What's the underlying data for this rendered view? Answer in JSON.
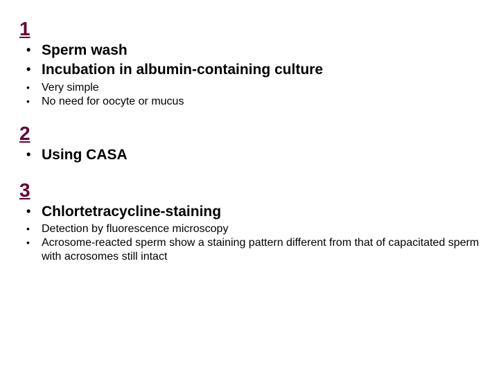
{
  "colors": {
    "heading": "#660033",
    "body": "#000000",
    "background": "#ffffff"
  },
  "typography": {
    "heading_fontsize": 28,
    "bold_bullet_fontsize": 21,
    "small_bullet_fontsize": 16,
    "font_family": "Arial"
  },
  "sections": [
    {
      "number": "1",
      "items": [
        {
          "level": "bold",
          "text": "Sperm wash"
        },
        {
          "level": "bold",
          "text": "Incubation in albumin-containing culture"
        },
        {
          "level": "small",
          "text": "Very simple"
        },
        {
          "level": "small",
          "text": "No need for oocyte or mucus"
        }
      ]
    },
    {
      "number": "2",
      "items": [
        {
          "level": "bold",
          "text": "Using CASA"
        }
      ]
    },
    {
      "number": "3",
      "items": [
        {
          "level": "bold",
          "text": "Chlortetracycline-staining"
        },
        {
          "level": "small",
          "text": "Detection by fluorescence microscopy"
        },
        {
          "level": "small",
          "text": "Acrosome-reacted sperm show a staining pattern different from that of capacitated sperm with acrosomes still intact"
        }
      ]
    }
  ]
}
